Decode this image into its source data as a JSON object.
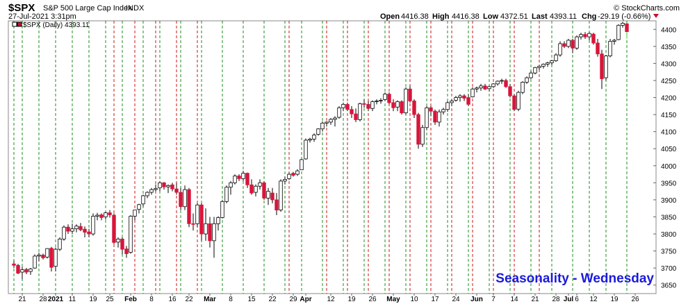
{
  "header": {
    "symbol": "$SPX",
    "name": "S&P 500 Large Cap Index",
    "exchange": "INDX",
    "datetime": "27-Jul-2021 3:31pm",
    "watermark": "© StockCharts.com",
    "stats": {
      "open_label": "Open",
      "open": "4416.38",
      "high_label": "High",
      "high": "4416.38",
      "low_label": "Low",
      "low": "4372.51",
      "last_label": "Last",
      "last": "4393.11",
      "chg_label": "Chg",
      "chg": "-29.19 (-0.66%)"
    }
  },
  "legend": {
    "label": "$SPX (Daily) 4393.11"
  },
  "annotation": {
    "text": "Seasonality - Wednesday",
    "color": "#1a1adb"
  },
  "colors": {
    "up": "#ffffff",
    "down": "#d9143a",
    "green_line": "#1a8c1a",
    "red_line": "#cc1111",
    "wick": "#000000",
    "last_down_wick": "#33cc33"
  },
  "chart_data": {
    "type": "candlestick",
    "ylim": [
      3625,
      4425
    ],
    "yticks": [
      3650,
      3700,
      3750,
      3800,
      3850,
      3900,
      3950,
      4000,
      4050,
      4100,
      4150,
      4200,
      4250,
      4300,
      4350,
      4400
    ],
    "xlabels": [
      {
        "label": "21",
        "idx": 2,
        "bold": false
      },
      {
        "label": "28",
        "idx": 7,
        "bold": false
      },
      {
        "label": "2021",
        "idx": 10,
        "bold": true
      },
      {
        "label": "11",
        "idx": 14,
        "bold": false
      },
      {
        "label": "19",
        "idx": 19,
        "bold": false
      },
      {
        "label": "25",
        "idx": 23,
        "bold": false
      },
      {
        "label": "Feb",
        "idx": 28,
        "bold": true
      },
      {
        "label": "8",
        "idx": 33,
        "bold": false
      },
      {
        "label": "16",
        "idx": 38,
        "bold": false
      },
      {
        "label": "22",
        "idx": 42,
        "bold": false
      },
      {
        "label": "Mar",
        "idx": 47,
        "bold": true
      },
      {
        "label": "8",
        "idx": 52,
        "bold": false
      },
      {
        "label": "15",
        "idx": 57,
        "bold": false
      },
      {
        "label": "22",
        "idx": 62,
        "bold": false
      },
      {
        "label": "29",
        "idx": 67,
        "bold": false
      },
      {
        "label": "Apr",
        "idx": 70,
        "bold": true
      },
      {
        "label": "12",
        "idx": 76,
        "bold": false
      },
      {
        "label": "19",
        "idx": 81,
        "bold": false
      },
      {
        "label": "26",
        "idx": 86,
        "bold": false
      },
      {
        "label": "May",
        "idx": 91,
        "bold": true
      },
      {
        "label": "10",
        "idx": 96,
        "bold": false
      },
      {
        "label": "17",
        "idx": 101,
        "bold": false
      },
      {
        "label": "24",
        "idx": 106,
        "bold": false
      },
      {
        "label": "Jun",
        "idx": 111,
        "bold": true
      },
      {
        "label": "7",
        "idx": 115,
        "bold": false
      },
      {
        "label": "14",
        "idx": 120,
        "bold": false
      },
      {
        "label": "21",
        "idx": 125,
        "bold": false
      },
      {
        "label": "28",
        "idx": 130,
        "bold": false
      },
      {
        "label": "Jul",
        "idx": 133,
        "bold": true
      },
      {
        "label": "6",
        "idx": 135,
        "bold": false
      },
      {
        "label": "12",
        "idx": 139,
        "bold": false
      },
      {
        "label": "19",
        "idx": 144,
        "bold": false
      },
      {
        "label": "26",
        "idx": 149,
        "bold": false
      }
    ],
    "green_lines": [
      0,
      2,
      6,
      10,
      14,
      18,
      22,
      26,
      31,
      35,
      40,
      45,
      50,
      55,
      60,
      65,
      69,
      74,
      79,
      84,
      89,
      94,
      99,
      104,
      109,
      114,
      119,
      124,
      129,
      134,
      138,
      142,
      147
    ],
    "red_lines": [
      24,
      29,
      34,
      39,
      44,
      66,
      75,
      80,
      85,
      90,
      95,
      100,
      105,
      110,
      115,
      120,
      126
    ],
    "candles": [
      [
        3712,
        3722,
        3700,
        3708
      ],
      [
        3708,
        3712,
        3682,
        3685
      ],
      [
        3688,
        3704,
        3667,
        3695
      ],
      [
        3696,
        3700,
        3682,
        3688
      ],
      [
        3690,
        3700,
        3680,
        3697
      ],
      [
        3700,
        3740,
        3698,
        3735
      ],
      [
        3735,
        3745,
        3720,
        3738
      ],
      [
        3738,
        3742,
        3725,
        3730
      ],
      [
        3732,
        3758,
        3728,
        3757
      ],
      [
        3758,
        3762,
        3690,
        3702
      ],
      [
        3705,
        3760,
        3690,
        3755
      ],
      [
        3755,
        3790,
        3750,
        3785
      ],
      [
        3785,
        3825,
        3780,
        3820
      ],
      [
        3820,
        3828,
        3800,
        3808
      ],
      [
        3808,
        3830,
        3800,
        3815
      ],
      [
        3815,
        3828,
        3805,
        3823
      ],
      [
        3822,
        3832,
        3808,
        3812
      ],
      [
        3814,
        3822,
        3790,
        3805
      ],
      [
        3806,
        3815,
        3790,
        3800
      ],
      [
        3800,
        3860,
        3795,
        3852
      ],
      [
        3852,
        3862,
        3840,
        3855
      ],
      [
        3856,
        3860,
        3840,
        3848
      ],
      [
        3850,
        3865,
        3842,
        3862
      ],
      [
        3862,
        3870,
        3848,
        3856
      ],
      [
        3855,
        3860,
        3770,
        3775
      ],
      [
        3776,
        3790,
        3760,
        3785
      ],
      [
        3785,
        3790,
        3740,
        3755
      ],
      [
        3756,
        3765,
        3730,
        3742
      ],
      [
        3746,
        3855,
        3742,
        3852
      ],
      [
        3852,
        3870,
        3840,
        3870
      ],
      [
        3872,
        3888,
        3860,
        3886
      ],
      [
        3888,
        3915,
        3880,
        3912
      ],
      [
        3912,
        3925,
        3905,
        3922
      ],
      [
        3922,
        3935,
        3915,
        3930
      ],
      [
        3930,
        3945,
        3925,
        3933
      ],
      [
        3935,
        3955,
        3925,
        3950
      ],
      [
        3950,
        3952,
        3930,
        3938
      ],
      [
        3938,
        3945,
        3920,
        3942
      ],
      [
        3944,
        3950,
        3925,
        3932
      ],
      [
        3932,
        3950,
        3915,
        3922
      ],
      [
        3922,
        3935,
        3870,
        3880
      ],
      [
        3880,
        3942,
        3870,
        3930
      ],
      [
        3930,
        3935,
        3820,
        3830
      ],
      [
        3830,
        3860,
        3810,
        3828
      ],
      [
        3830,
        3890,
        3820,
        3885
      ],
      [
        3885,
        3890,
        3780,
        3800
      ],
      [
        3800,
        3875,
        3780,
        3830
      ],
      [
        3830,
        3850,
        3760,
        3780
      ],
      [
        3780,
        3850,
        3730,
        3830
      ],
      [
        3830,
        3852,
        3810,
        3848
      ],
      [
        3848,
        3900,
        3845,
        3895
      ],
      [
        3895,
        3942,
        3890,
        3937
      ],
      [
        3937,
        3955,
        3915,
        3950
      ],
      [
        3950,
        3975,
        3945,
        3970
      ],
      [
        3970,
        3975,
        3955,
        3962
      ],
      [
        3962,
        3985,
        3955,
        3978
      ],
      [
        3978,
        3980,
        3935,
        3944
      ],
      [
        3944,
        3960,
        3915,
        3920
      ],
      [
        3922,
        3945,
        3910,
        3940
      ],
      [
        3940,
        3960,
        3930,
        3950
      ],
      [
        3950,
        3955,
        3900,
        3905
      ],
      [
        3905,
        3935,
        3885,
        3925
      ],
      [
        3920,
        3935,
        3890,
        3900
      ],
      [
        3900,
        3920,
        3855,
        3870
      ],
      [
        3870,
        3960,
        3865,
        3955
      ],
      [
        3955,
        3968,
        3945,
        3960
      ],
      [
        3962,
        3980,
        3958,
        3975
      ],
      [
        3978,
        3982,
        3968,
        3972
      ],
      [
        3975,
        3990,
        3970,
        3985
      ],
      [
        3988,
        4020,
        3988,
        4018
      ],
      [
        4020,
        4080,
        4018,
        4075
      ],
      [
        4075,
        4082,
        4068,
        4078
      ],
      [
        4078,
        4095,
        4070,
        4090
      ],
      [
        4092,
        4110,
        4088,
        4108
      ],
      [
        4108,
        4130,
        4100,
        4125
      ],
      [
        4125,
        4130,
        4115,
        4128
      ],
      [
        4128,
        4140,
        4120,
        4136
      ],
      [
        4136,
        4145,
        4115,
        4140
      ],
      [
        4142,
        4175,
        4138,
        4170
      ],
      [
        4170,
        4185,
        4160,
        4180
      ],
      [
        4180,
        4185,
        4160,
        4165
      ],
      [
        4165,
        4175,
        4140,
        4152
      ],
      [
        4152,
        4168,
        4128,
        4135
      ],
      [
        4135,
        4185,
        4130,
        4182
      ],
      [
        4182,
        4195,
        4170,
        4180
      ],
      [
        4180,
        4190,
        4160,
        4168
      ],
      [
        4168,
        4192,
        4160,
        4188
      ],
      [
        4188,
        4195,
        4180,
        4190
      ],
      [
        4190,
        4198,
        4182,
        4192
      ],
      [
        4194,
        4215,
        4190,
        4210
      ],
      [
        4210,
        4215,
        4180,
        4185
      ],
      [
        4185,
        4195,
        4160,
        4170
      ],
      [
        4172,
        4192,
        4160,
        4188
      ],
      [
        4188,
        4192,
        4150,
        4155
      ],
      [
        4155,
        4230,
        4150,
        4225
      ],
      [
        4225,
        4235,
        4185,
        4190
      ],
      [
        4190,
        4195,
        4140,
        4150
      ],
      [
        4150,
        4155,
        4050,
        4063
      ],
      [
        4063,
        4120,
        4055,
        4112
      ],
      [
        4112,
        4175,
        4105,
        4170
      ],
      [
        4170,
        4175,
        4145,
        4160
      ],
      [
        4160,
        4165,
        4120,
        4128
      ],
      [
        4128,
        4165,
        4115,
        4158
      ],
      [
        4158,
        4170,
        4150,
        4165
      ],
      [
        4165,
        4190,
        4158,
        4185
      ],
      [
        4185,
        4195,
        4175,
        4190
      ],
      [
        4192,
        4205,
        4188,
        4200
      ],
      [
        4200,
        4210,
        4188,
        4205
      ],
      [
        4205,
        4210,
        4190,
        4198
      ],
      [
        4200,
        4210,
        4175,
        4180
      ],
      [
        4202,
        4230,
        4200,
        4225
      ],
      [
        4225,
        4232,
        4215,
        4228
      ],
      [
        4228,
        4240,
        4220,
        4234
      ],
      [
        4234,
        4240,
        4222,
        4225
      ],
      [
        4226,
        4235,
        4218,
        4232
      ],
      [
        4232,
        4242,
        4228,
        4240
      ],
      [
        4240,
        4250,
        4235,
        4248
      ],
      [
        4248,
        4255,
        4240,
        4250
      ],
      [
        4250,
        4255,
        4228,
        4232
      ],
      [
        4232,
        4240,
        4200,
        4205
      ],
      [
        4205,
        4210,
        4160,
        4165
      ],
      [
        4166,
        4220,
        4160,
        4215
      ],
      [
        4215,
        4248,
        4210,
        4245
      ],
      [
        4245,
        4262,
        4240,
        4258
      ],
      [
        4258,
        4278,
        4255,
        4272
      ],
      [
        4272,
        4290,
        4268,
        4288
      ],
      [
        4288,
        4295,
        4280,
        4292
      ],
      [
        4292,
        4300,
        4285,
        4298
      ],
      [
        4298,
        4305,
        4290,
        4302
      ],
      [
        4302,
        4310,
        4295,
        4308
      ],
      [
        4308,
        4330,
        4305,
        4325
      ],
      [
        4325,
        4365,
        4320,
        4358
      ],
      [
        4358,
        4365,
        4345,
        4350
      ],
      [
        4350,
        4372,
        4345,
        4368
      ],
      [
        4368,
        4372,
        4330,
        4345
      ],
      [
        4345,
        4382,
        4340,
        4378
      ],
      [
        4378,
        4390,
        4370,
        4385
      ],
      [
        4385,
        4392,
        4372,
        4378
      ],
      [
        4378,
        4392,
        4368,
        4388
      ],
      [
        4386,
        4390,
        4355,
        4360
      ],
      [
        4360,
        4372,
        4320,
        4328
      ],
      [
        4328,
        4340,
        4225,
        4255
      ],
      [
        4258,
        4325,
        4250,
        4322
      ],
      [
        4322,
        4372,
        4318,
        4365
      ],
      [
        4365,
        4372,
        4355,
        4368
      ],
      [
        4370,
        4415,
        4368,
        4412
      ],
      [
        4412,
        4422,
        4405,
        4418
      ],
      [
        4416.38,
        4416.38,
        4372.51,
        4393.11
      ]
    ]
  }
}
